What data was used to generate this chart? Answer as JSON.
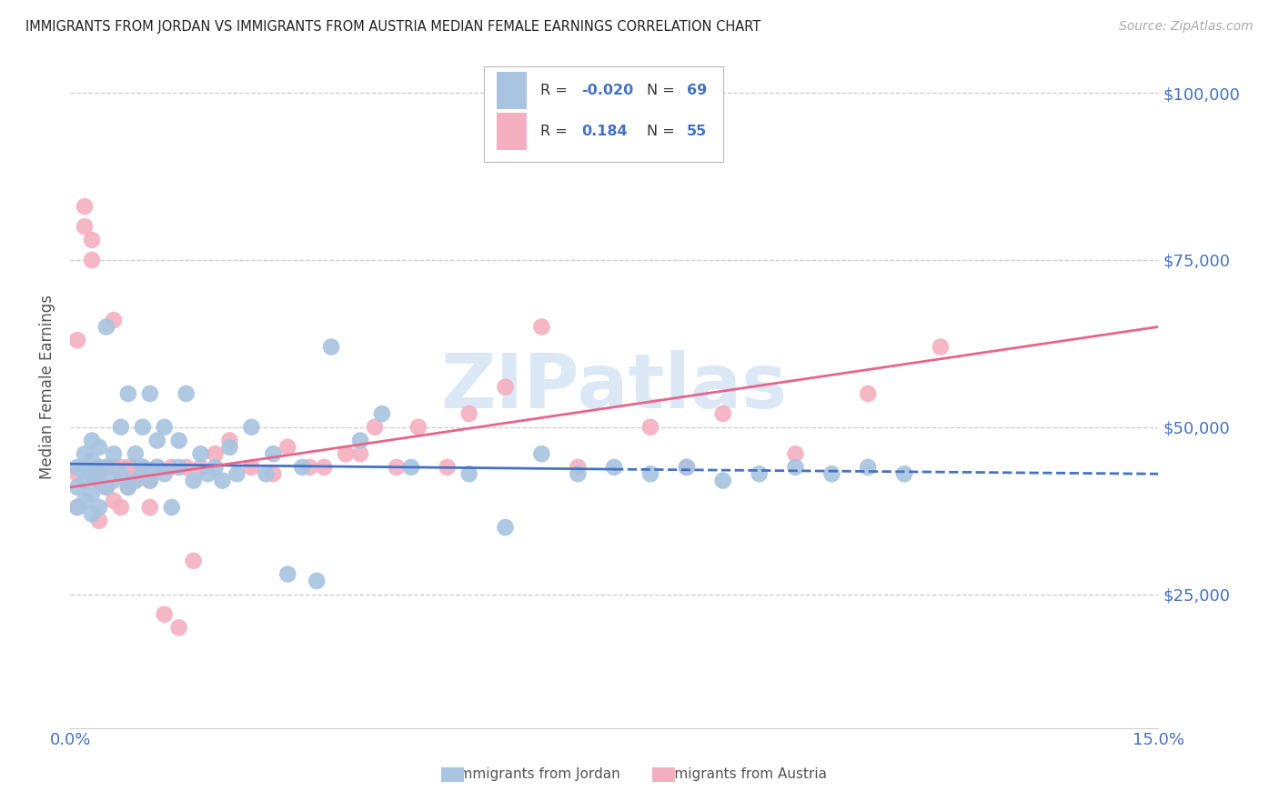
{
  "title": "IMMIGRANTS FROM JORDAN VS IMMIGRANTS FROM AUSTRIA MEDIAN FEMALE EARNINGS CORRELATION CHART",
  "source": "Source: ZipAtlas.com",
  "ylabel": "Median Female Earnings",
  "xmin": 0.0,
  "xmax": 0.15,
  "ymin": 5000,
  "ymax": 107000,
  "jordan_color": "#a8c4e0",
  "jordan_edge_color": "#7bafd4",
  "jordan_line_color": "#4472c4",
  "austria_color": "#f4b0c0",
  "austria_edge_color": "#e888a0",
  "austria_line_color": "#e8648a",
  "background_color": "#ffffff",
  "grid_color": "#cccccc",
  "title_color": "#222222",
  "axis_color": "#4472c4",
  "watermark": "ZIPatlas",
  "watermark_color": "#dce8f5",
  "jordan_trend_x": [
    0.0,
    0.075,
    0.15
  ],
  "jordan_trend_y": [
    44500,
    43700,
    43000
  ],
  "jordan_trend_solid_end": 0.075,
  "austria_trend_x": [
    0.0,
    0.15
  ],
  "austria_trend_y": [
    41000,
    65000
  ],
  "jordan_points_x": [
    0.001,
    0.001,
    0.001,
    0.002,
    0.002,
    0.002,
    0.002,
    0.003,
    0.003,
    0.003,
    0.003,
    0.003,
    0.004,
    0.004,
    0.004,
    0.004,
    0.005,
    0.005,
    0.005,
    0.006,
    0.006,
    0.007,
    0.007,
    0.008,
    0.008,
    0.009,
    0.009,
    0.01,
    0.01,
    0.011,
    0.011,
    0.012,
    0.012,
    0.013,
    0.013,
    0.014,
    0.015,
    0.015,
    0.016,
    0.017,
    0.018,
    0.019,
    0.02,
    0.021,
    0.022,
    0.023,
    0.025,
    0.027,
    0.028,
    0.03,
    0.032,
    0.034,
    0.036,
    0.04,
    0.043,
    0.047,
    0.055,
    0.06,
    0.065,
    0.07,
    0.075,
    0.08,
    0.085,
    0.09,
    0.095,
    0.1,
    0.105,
    0.11,
    0.115
  ],
  "jordan_points_y": [
    44000,
    41000,
    38000,
    46000,
    44000,
    42000,
    39000,
    48000,
    45000,
    43000,
    40000,
    37000,
    47000,
    44000,
    42000,
    38000,
    65000,
    44000,
    41000,
    46000,
    42000,
    50000,
    43000,
    55000,
    41000,
    46000,
    42000,
    50000,
    44000,
    55000,
    42000,
    48000,
    44000,
    50000,
    43000,
    38000,
    48000,
    44000,
    55000,
    42000,
    46000,
    43000,
    44000,
    42000,
    47000,
    43000,
    50000,
    43000,
    46000,
    28000,
    44000,
    27000,
    62000,
    48000,
    52000,
    44000,
    43000,
    35000,
    46000,
    43000,
    44000,
    43000,
    44000,
    42000,
    43000,
    44000,
    43000,
    44000,
    43000
  ],
  "austria_points_x": [
    0.001,
    0.001,
    0.001,
    0.002,
    0.002,
    0.003,
    0.003,
    0.003,
    0.004,
    0.004,
    0.004,
    0.005,
    0.005,
    0.006,
    0.006,
    0.006,
    0.007,
    0.007,
    0.008,
    0.008,
    0.009,
    0.009,
    0.01,
    0.011,
    0.011,
    0.012,
    0.013,
    0.014,
    0.015,
    0.016,
    0.017,
    0.018,
    0.02,
    0.022,
    0.025,
    0.028,
    0.03,
    0.033,
    0.035,
    0.038,
    0.04,
    0.042,
    0.045,
    0.048,
    0.052,
    0.055,
    0.06,
    0.065,
    0.07,
    0.08,
    0.085,
    0.09,
    0.1,
    0.11,
    0.12
  ],
  "austria_points_y": [
    63000,
    43000,
    38000,
    83000,
    80000,
    78000,
    75000,
    43000,
    44000,
    42000,
    36000,
    44000,
    41000,
    66000,
    44000,
    39000,
    44000,
    38000,
    44000,
    41000,
    44000,
    42000,
    44000,
    42000,
    38000,
    44000,
    22000,
    44000,
    20000,
    44000,
    30000,
    44000,
    46000,
    48000,
    44000,
    43000,
    47000,
    44000,
    44000,
    46000,
    46000,
    50000,
    44000,
    50000,
    44000,
    52000,
    56000,
    65000,
    44000,
    50000,
    44000,
    52000,
    46000,
    55000,
    62000
  ],
  "ytick_positions": [
    25000,
    50000,
    75000,
    100000
  ],
  "ytick_labels": [
    "$25,000",
    "$50,000",
    "$75,000",
    "$100,000"
  ]
}
